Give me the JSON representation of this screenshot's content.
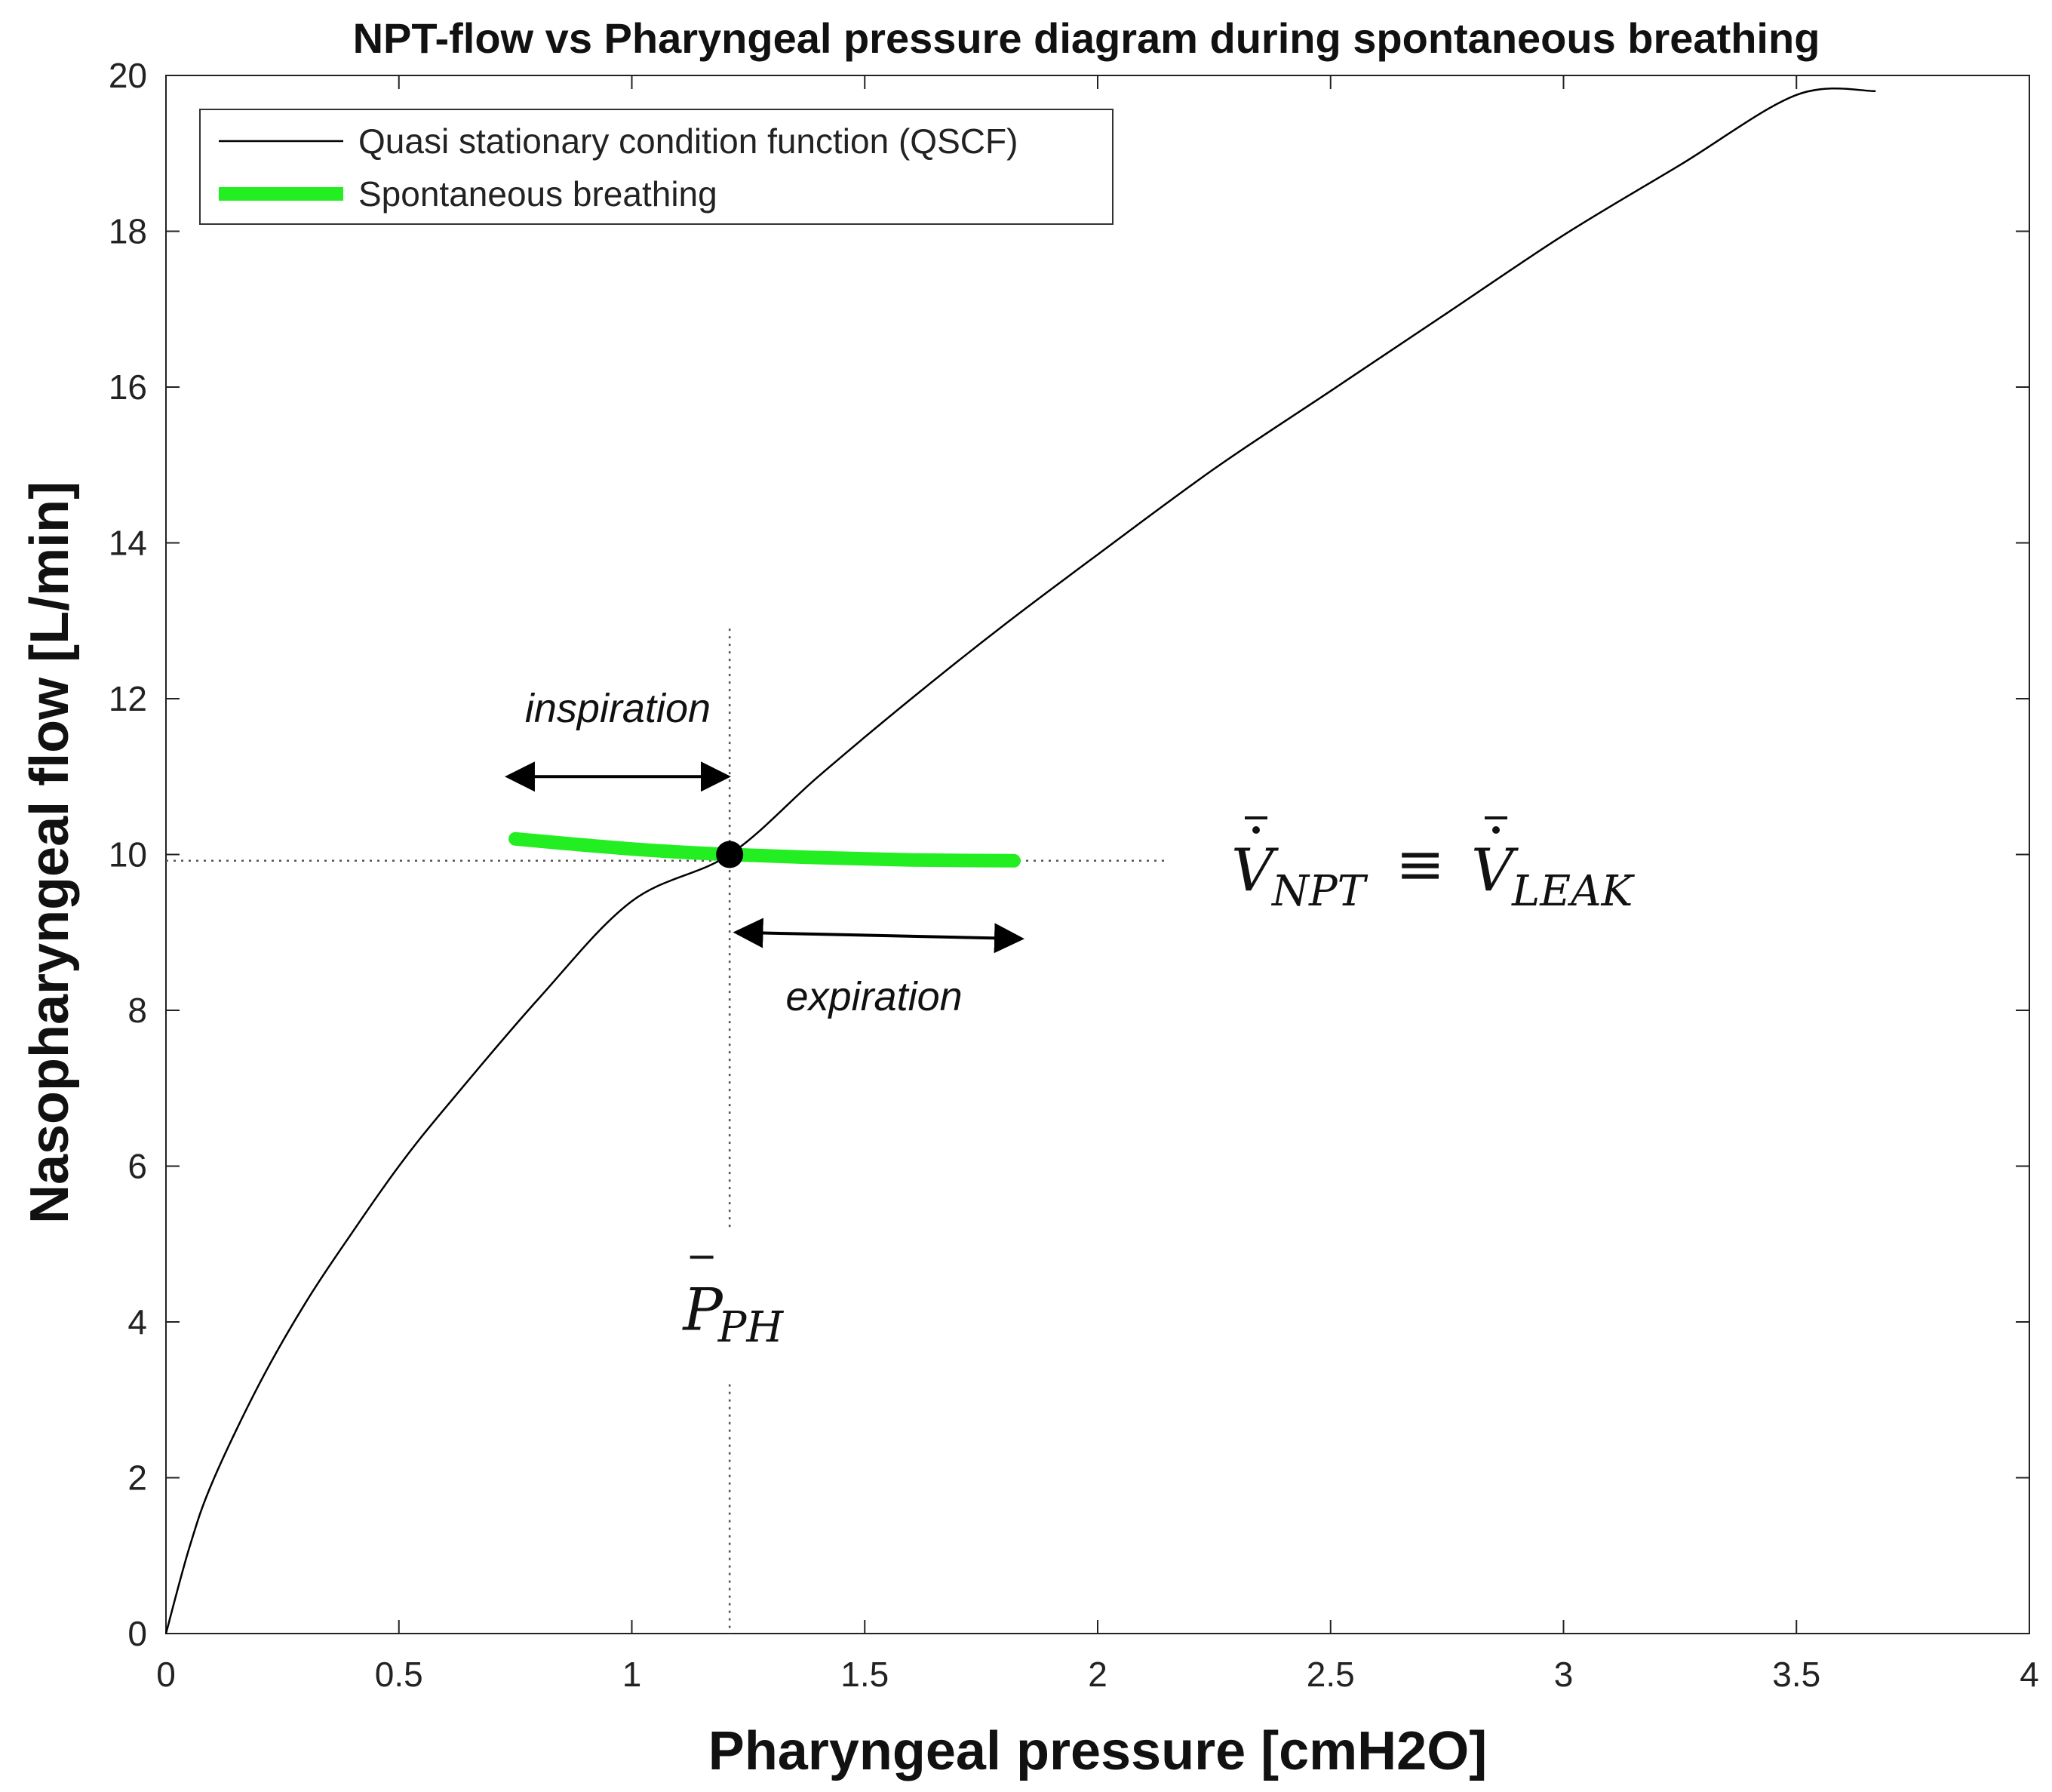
{
  "chart_data": {
    "type": "line",
    "title": "NPT-flow vs Pharyngeal pressure diagram during spontaneous breathing",
    "xlabel": "Pharyngeal pressure [cmH2O]",
    "ylabel": "Nasopharyngeal flow [L/min]",
    "xlim": [
      0,
      4
    ],
    "ylim": [
      0,
      20
    ],
    "xticks": [
      0,
      0.5,
      1,
      1.5,
      2,
      2.5,
      3,
      3.5,
      4
    ],
    "xtick_labels": [
      "0",
      "0.5",
      "1",
      "1.5",
      "2",
      "2.5",
      "3",
      "3.5",
      "4"
    ],
    "yticks": [
      0,
      2,
      4,
      6,
      8,
      10,
      12,
      14,
      16,
      18,
      20
    ],
    "ytick_labels": [
      "0",
      "2",
      "4",
      "6",
      "8",
      "10",
      "12",
      "14",
      "16",
      "18",
      "20"
    ],
    "grid": false,
    "legend_position": "top-left",
    "series": [
      {
        "name": "Quasi stationary condition function (QSCF)",
        "color": "#000000",
        "x": [
          0,
          0.05,
          0.1,
          0.2,
          0.3,
          0.4,
          0.5,
          0.6,
          0.8,
          1.0,
          1.21,
          1.4,
          1.6,
          1.8,
          2.0,
          2.25,
          2.5,
          2.75,
          3.0,
          3.25,
          3.5,
          3.67
        ],
        "y": [
          0,
          1.1,
          1.95,
          3.2,
          4.25,
          5.15,
          6.0,
          6.75,
          8.15,
          9.4,
          10.0,
          11.0,
          12.0,
          12.95,
          13.85,
          14.95,
          15.95,
          16.95,
          17.95,
          18.85,
          19.75,
          19.8
        ]
      },
      {
        "name": "Spontaneous breathing",
        "color": "#22ee22",
        "x": [
          0.75,
          0.9,
          1.05,
          1.21,
          1.4,
          1.6,
          1.82
        ],
        "y": [
          10.2,
          10.12,
          10.05,
          10.0,
          9.96,
          9.93,
          9.92
        ]
      }
    ],
    "reference_point": {
      "x": 1.21,
      "y": 10.0
    },
    "reference_lines": {
      "vertical_x": 1.21,
      "horizontal_y": 9.92
    },
    "annotations": {
      "inspiration": "inspiration",
      "expiration": "expiration",
      "pressure_symbol": "P",
      "pressure_subscript": "PH",
      "flow_equation_left": "V",
      "flow_equation_left_sub": "NPT",
      "flow_equation_operator": "≡",
      "flow_equation_right": "V",
      "flow_equation_right_sub": "LEAK"
    }
  }
}
